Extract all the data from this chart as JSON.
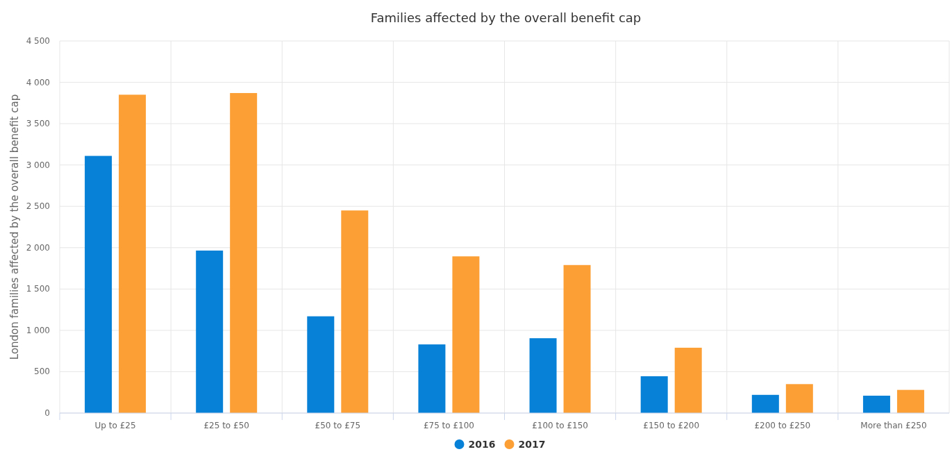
{
  "chart_data": {
    "type": "bar",
    "title": "Families affected by the overall benefit cap",
    "ylabel": "London families affected by the overall benefit cap",
    "categories": [
      "Up to £25",
      "£25 to £50",
      "£50 to £75",
      "£75 to £100",
      "£100 to £150",
      "£150 to £200",
      "£200 to £250",
      "More than £250"
    ],
    "series": [
      {
        "name": "2016",
        "color": "#0781d8",
        "values": [
          3110,
          1965,
          1170,
          830,
          905,
          445,
          220,
          210
        ]
      },
      {
        "name": "2017",
        "color": "#fca035",
        "values": [
          3850,
          3870,
          2450,
          1895,
          1790,
          790,
          350,
          280
        ]
      }
    ],
    "ylim": [
      0,
      4500
    ],
    "yticks": [
      0,
      500,
      {
        "value": 1000,
        "label": "1 000"
      },
      {
        "value": 1500,
        "label": "1 500"
      },
      {
        "value": 2000,
        "label": "2 000"
      },
      {
        "value": 2500,
        "label": "2 500"
      },
      {
        "value": 3000,
        "label": "3 000"
      },
      {
        "value": 3500,
        "label": "3 500"
      },
      {
        "value": 4000,
        "label": "4 000"
      },
      {
        "value": 4500,
        "label": "4 500"
      }
    ],
    "grid": true,
    "legend": "bottom"
  }
}
